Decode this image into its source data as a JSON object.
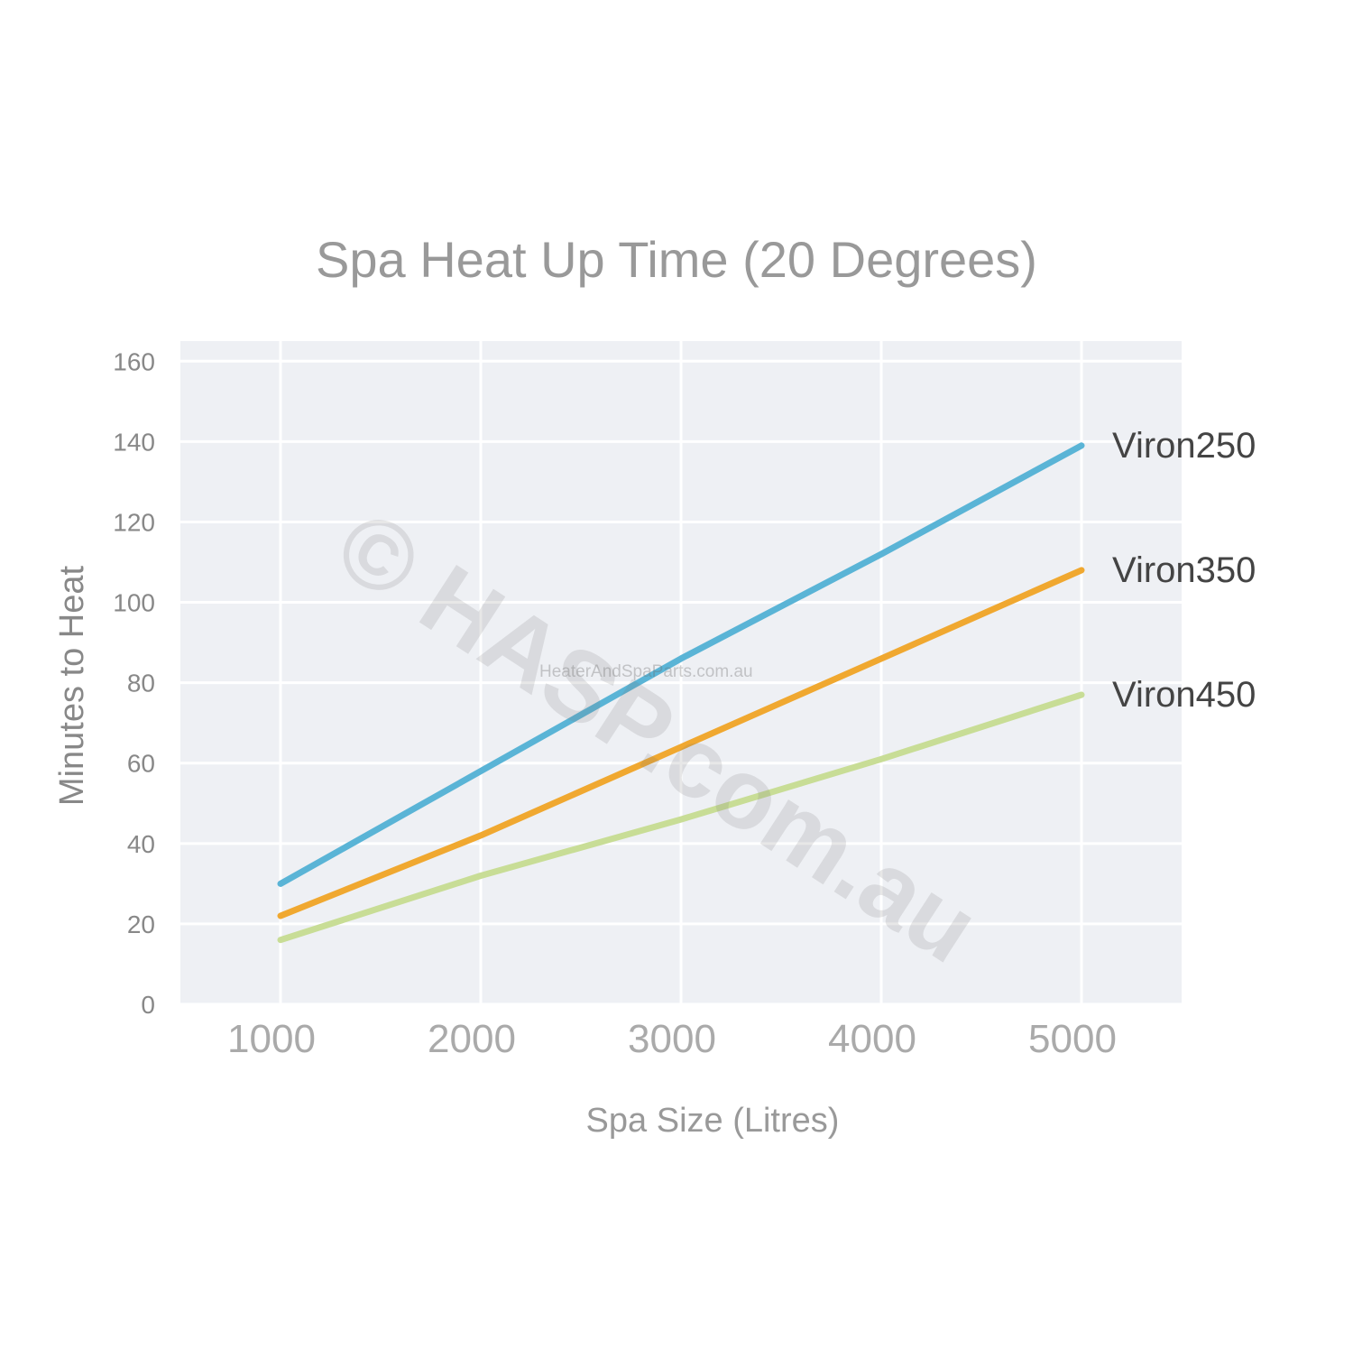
{
  "chart_data": {
    "type": "line",
    "title": "Spa Heat Up Time (20 Degrees)",
    "xlabel": "Spa Size (Litres)",
    "ylabel": "Minutes to Heat",
    "xlim": [
      500,
      5500
    ],
    "ylim": [
      0,
      165
    ],
    "x_ticks": [
      1000,
      2000,
      3000,
      4000,
      5000
    ],
    "y_ticks": [
      0,
      20,
      40,
      60,
      80,
      100,
      120,
      140,
      160
    ],
    "grid": true,
    "legend_position": "right (inline labels at line ends)",
    "series": [
      {
        "name": "Viron250",
        "color": "#5ab4d6",
        "points": [
          [
            1000,
            30
          ],
          [
            2000,
            58
          ],
          [
            3000,
            86
          ],
          [
            4000,
            112
          ],
          [
            5000,
            139
          ]
        ]
      },
      {
        "name": "Viron350",
        "color": "#f0a830",
        "points": [
          [
            1000,
            22
          ],
          [
            2000,
            42
          ],
          [
            3000,
            64
          ],
          [
            4000,
            86
          ],
          [
            5000,
            108
          ]
        ]
      },
      {
        "name": "Viron450",
        "color": "#c8dd96",
        "points": [
          [
            1000,
            16
          ],
          [
            2000,
            32
          ],
          [
            3000,
            46
          ],
          [
            4000,
            61
          ],
          [
            5000,
            77
          ]
        ]
      }
    ]
  },
  "watermark": {
    "main": "© HASP.com.au",
    "sub": "HeaterAndSpaParts.com.au"
  }
}
